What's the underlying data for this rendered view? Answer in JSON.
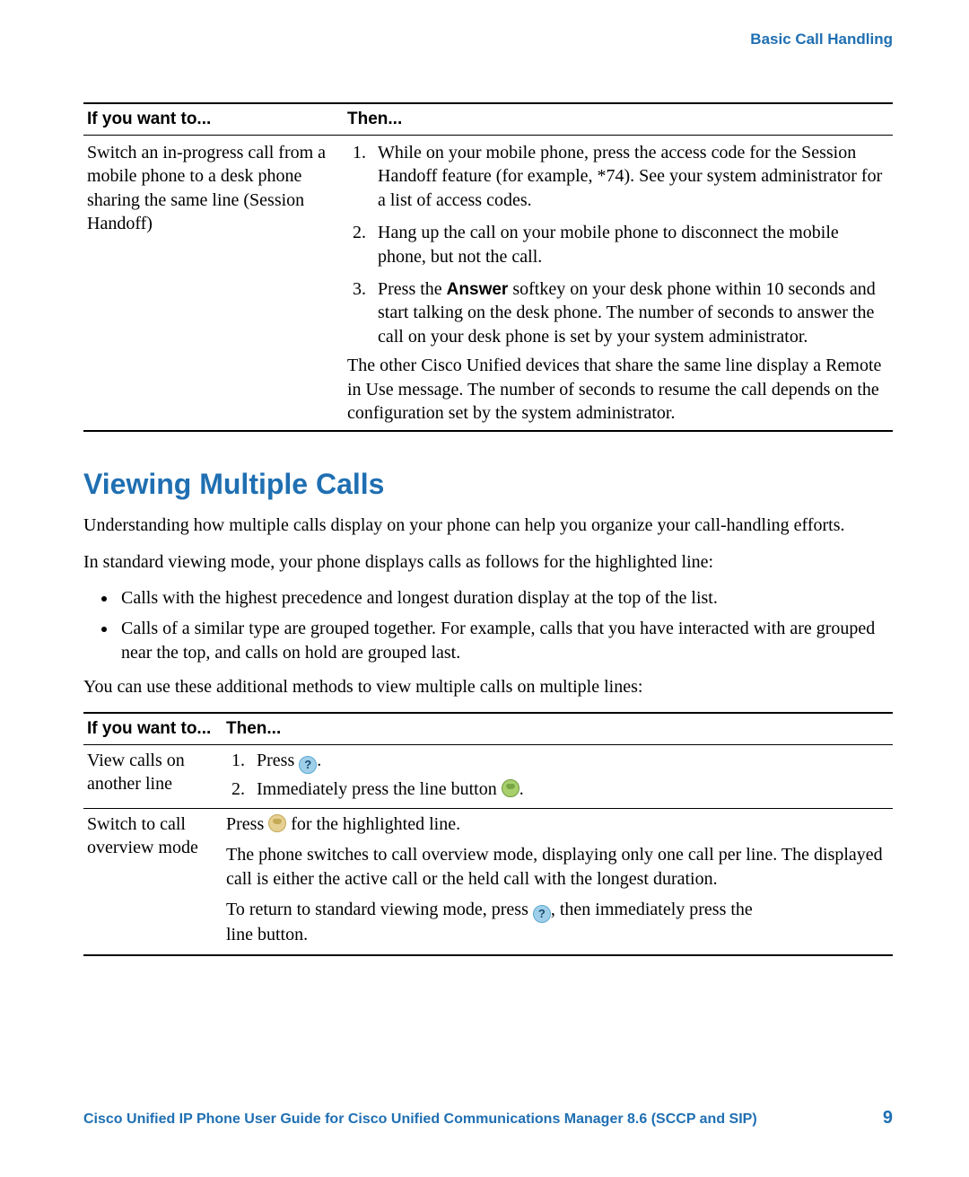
{
  "colors": {
    "link_blue": "#1f6fb2",
    "text": "#000000",
    "background": "#ffffff",
    "rule": "#000000",
    "help_icon_fill": "#9fcfe8",
    "help_icon_border": "#5aa9d6",
    "help_icon_glyph": "#174a6e",
    "line_icon_green_fill": "#a7cf6c",
    "line_icon_green_border": "#6e9a3a",
    "line_icon_amber_fill": "#e6cf92",
    "line_icon_amber_border": "#c4a956"
  },
  "typography": {
    "body_family": "Georgia, Times New Roman, serif",
    "ui_family": "Arial, Helvetica, sans-serif",
    "body_size_pt": 15,
    "header_size_pt": 14,
    "section_title_size_pt": 24
  },
  "header": {
    "section_link": "Basic Call Handling"
  },
  "table1": {
    "headers": {
      "left": "If you want to...",
      "right": "Then..."
    },
    "row": {
      "left": "Switch an in-progress call from a mobile phone to a desk phone sharing the same line (Session Handoff)",
      "steps": {
        "s1": "While on your mobile phone, press the access code for the Session Handoff feature (for example, *74). See your system administrator for a list of access codes.",
        "s2": "Hang up the call on your mobile phone to disconnect the mobile phone, but not the call.",
        "s3_pre": "Press the ",
        "s3_bold": "Answer",
        "s3_post": " softkey on your desk phone within 10 seconds and start talking on the desk phone. The number of seconds to answer the call on your desk phone is set by your system administrator."
      },
      "after": "The other Cisco Unified devices that share the same line display a Remote in Use message. The number of seconds to resume the call depends on the configuration set by the system administrator."
    }
  },
  "section_title": "Viewing Multiple Calls",
  "intro": {
    "p1": "Understanding how multiple calls display on your phone can help you organize your call-handling efforts.",
    "p2": "In standard viewing mode, your phone displays calls as follows for the highlighted line:",
    "bullet1": "Calls with the highest precedence and longest duration display at the top of the list.",
    "bullet2": "Calls of a similar type are grouped together. For example, calls that you have interacted with are grouped near the top, and calls on hold are grouped last.",
    "p3": "You can use these additional methods to view multiple calls on multiple lines:"
  },
  "table2": {
    "headers": {
      "left": "If you want to...",
      "right": "Then..."
    },
    "r1": {
      "left": "View calls on another line",
      "s1_pre": "Press ",
      "s1_post": ".",
      "s2_pre": "Immediately press the line button ",
      "s2_post": "."
    },
    "r2": {
      "left": "Switch to call overview mode",
      "p1_pre": "Press ",
      "p1_post": " for the highlighted line.",
      "p2": "The phone switches to call overview mode, displaying only one call per line. The displayed call is either the active call or the held call with the longest duration.",
      "p3_pre": "To return to standard viewing mode, press ",
      "p3_mid": ", then immediately press the ",
      "p3_end": "line button."
    }
  },
  "icons": {
    "help_glyph": "?"
  },
  "footer": {
    "title": "Cisco Unified IP Phone User Guide for Cisco Unified Communications Manager 8.6 (SCCP and SIP)",
    "page": "9"
  }
}
